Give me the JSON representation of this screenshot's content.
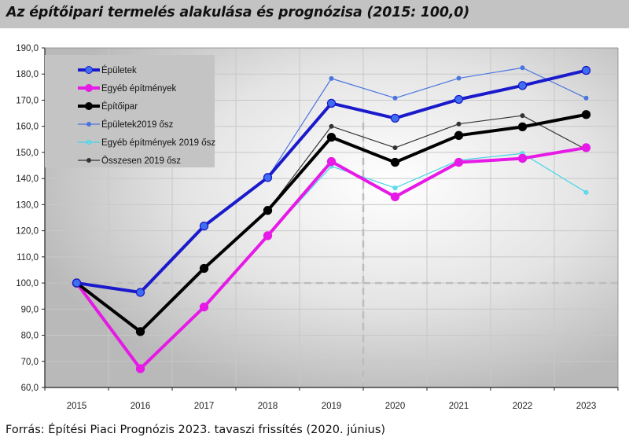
{
  "header": {
    "title": "Az építőipari termelés alakulása és prognózisa (2015: 100,0)"
  },
  "footer": {
    "source": "Forrás: Építési Piaci Prognózis 2023. tavaszi frissítés (2020. június)"
  },
  "chart_data": {
    "type": "line",
    "title": "Az építőipari termelés alakulása és prognózisa (2015: 100,0)",
    "xlabel": "",
    "ylabel": "",
    "categories": [
      "2015",
      "2016",
      "2017",
      "2018",
      "2019",
      "2020",
      "2021",
      "2022",
      "2023"
    ],
    "ylim": [
      60,
      190
    ],
    "yticks": [
      60,
      70,
      80,
      90,
      100,
      110,
      120,
      130,
      140,
      150,
      160,
      170,
      180,
      190
    ],
    "ytick_labels": [
      "60,0",
      "70,0",
      "80,0",
      "90,0",
      "100,0",
      "110,0",
      "120,0",
      "130,0",
      "140,0",
      "150,0",
      "160,0",
      "170,0",
      "180,0",
      "190,0"
    ],
    "grid": true,
    "legend_position": "top-left",
    "reference_lines": {
      "horizontal_value": 100,
      "vertical_between": [
        "2019",
        "2020"
      ]
    },
    "series": [
      {
        "name": "Épületek",
        "color": "#1a1acc",
        "marker_color": "#3f6ff0",
        "style": "thick",
        "values": [
          100.0,
          96.4,
          121.8,
          140.4,
          168.8,
          163.1,
          170.3,
          175.6,
          181.4
        ]
      },
      {
        "name": "Egyéb építmények",
        "color": "#e619e6",
        "marker_color": "#e619e6",
        "style": "thick",
        "values": [
          100.0,
          67.2,
          90.8,
          118.1,
          146.5,
          133.0,
          146.2,
          147.7,
          151.8
        ]
      },
      {
        "name": "Építőipar",
        "color": "#000000",
        "marker_color": "#000000",
        "style": "thick",
        "values": [
          100.0,
          81.4,
          105.6,
          127.8,
          155.8,
          146.2,
          156.5,
          159.8,
          164.5
        ]
      },
      {
        "name": "Épületek2019 ősz",
        "color": "#4a74e0",
        "marker_color": "#4a74e0",
        "style": "thin",
        "values": [
          null,
          null,
          null,
          140.4,
          178.3,
          170.8,
          178.4,
          182.4,
          170.8
        ]
      },
      {
        "name": "Egyéb építmények 2019 ősz",
        "color": "#3fd6e6",
        "marker_color": "#6fd8f0",
        "style": "thin",
        "values": [
          null,
          null,
          null,
          118.1,
          144.7,
          136.4,
          147.0,
          149.6,
          134.7
        ]
      },
      {
        "name": "Összesen 2019 ősz",
        "color": "#333333",
        "marker_color": "#333333",
        "style": "thin",
        "values": [
          null,
          null,
          null,
          127.8,
          160.0,
          151.8,
          160.9,
          164.1,
          151.1
        ]
      }
    ]
  }
}
